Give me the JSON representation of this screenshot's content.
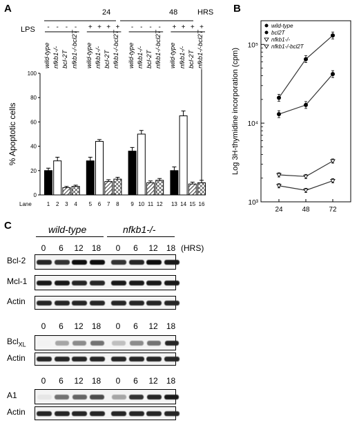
{
  "panel_a": {
    "letter": "A",
    "time_headers": [
      "24",
      "48"
    ],
    "hrs_label": "HRS",
    "lps_label": "LPS",
    "lps_signs": [
      "-",
      "-",
      "-",
      "-",
      "+",
      "+",
      "+",
      "+",
      "-",
      "-",
      "-",
      "-",
      "+",
      "+",
      "+",
      "+"
    ],
    "genotypes": [
      "wild-type",
      "nfkb1-/-",
      "bcl-2T",
      "nfkb1-/-bcl2T"
    ],
    "lane_label": "Lane",
    "lanes": [
      "1",
      "2",
      "3",
      "4",
      "5",
      "6",
      "7",
      "8",
      "9",
      "10",
      "11",
      "12",
      "13",
      "14",
      "15",
      "16"
    ],
    "chart_data": {
      "type": "bar",
      "ylabel": "% Apoptotic cells",
      "ylim": [
        0,
        100
      ],
      "yticks": [
        "0",
        "20",
        "40",
        "60",
        "80",
        "100"
      ],
      "values": [
        20,
        28,
        6,
        7,
        28,
        44,
        11,
        13,
        36,
        50,
        10,
        12,
        20,
        65,
        9,
        10
      ],
      "errors": [
        2,
        3,
        1,
        1,
        3,
        1.5,
        1.5,
        1.5,
        3,
        3,
        1.5,
        1.5,
        3,
        4,
        1.5,
        2
      ],
      "fills": [
        "black",
        "white",
        "hatch-diag",
        "hatch-cross",
        "black",
        "white",
        "hatch-diag",
        "hatch-cross",
        "black",
        "white",
        "hatch-diag",
        "hatch-cross",
        "black",
        "white",
        "hatch-diag",
        "hatch-cross"
      ]
    }
  },
  "panel_b": {
    "letter": "B",
    "chart_data": {
      "type": "line",
      "ylabel": "Log 3H-thymidine incorporation (cpm)",
      "x": [
        24,
        48,
        72
      ],
      "xticks": [
        "24",
        "48",
        "72"
      ],
      "yscale": "log",
      "ylim": [
        1000,
        200000
      ],
      "yticks": [
        "10³",
        "10⁴",
        "10⁵"
      ],
      "series": [
        {
          "name": "wild-type",
          "values": [
            21000,
            65000,
            130000
          ],
          "marker": "filled-circle"
        },
        {
          "name": "bcl2T",
          "values": [
            13000,
            17000,
            42000
          ],
          "marker": "filled-circle"
        },
        {
          "name": "nfkb1-/-",
          "values": [
            2200,
            2100,
            3300
          ],
          "marker": "open-triangle"
        },
        {
          "name": "nfkb1-/-bcl2T",
          "values": [
            1600,
            1400,
            1850
          ],
          "marker": "open-triangle"
        }
      ]
    }
  },
  "panel_c": {
    "letter": "C",
    "group_wt": "wild-type",
    "group_ko": "nfkb1-/-",
    "times": [
      "0",
      "6",
      "12",
      "18",
      "0",
      "6",
      "12",
      "18"
    ],
    "hrs": "(HRS)",
    "blots": {
      "bcl2": "Bcl-2",
      "mcl1": "Mcl-1",
      "actin": "Actin",
      "bclxl": "Bcl",
      "bclxl_sub": "XL",
      "a1": "A1"
    },
    "intensities": {
      "bcl2": [
        0.85,
        0.8,
        0.95,
        0.95,
        0.8,
        0.85,
        0.95,
        0.9
      ],
      "mcl1": [
        0.9,
        0.9,
        0.85,
        0.85,
        0.9,
        0.9,
        0.9,
        0.9
      ],
      "actin1": [
        0.85,
        0.85,
        0.85,
        0.85,
        0.85,
        0.85,
        0.85,
        0.85
      ],
      "bclxl": [
        0.05,
        0.35,
        0.45,
        0.55,
        0.25,
        0.45,
        0.55,
        0.85
      ],
      "actin2": [
        0.85,
        0.85,
        0.85,
        0.85,
        0.85,
        0.85,
        0.85,
        0.85
      ],
      "a1": [
        0.1,
        0.55,
        0.6,
        0.7,
        0.35,
        0.8,
        0.85,
        0.9
      ],
      "actin3": [
        0.85,
        0.85,
        0.85,
        0.85,
        0.85,
        0.85,
        0.85,
        0.85
      ]
    }
  }
}
